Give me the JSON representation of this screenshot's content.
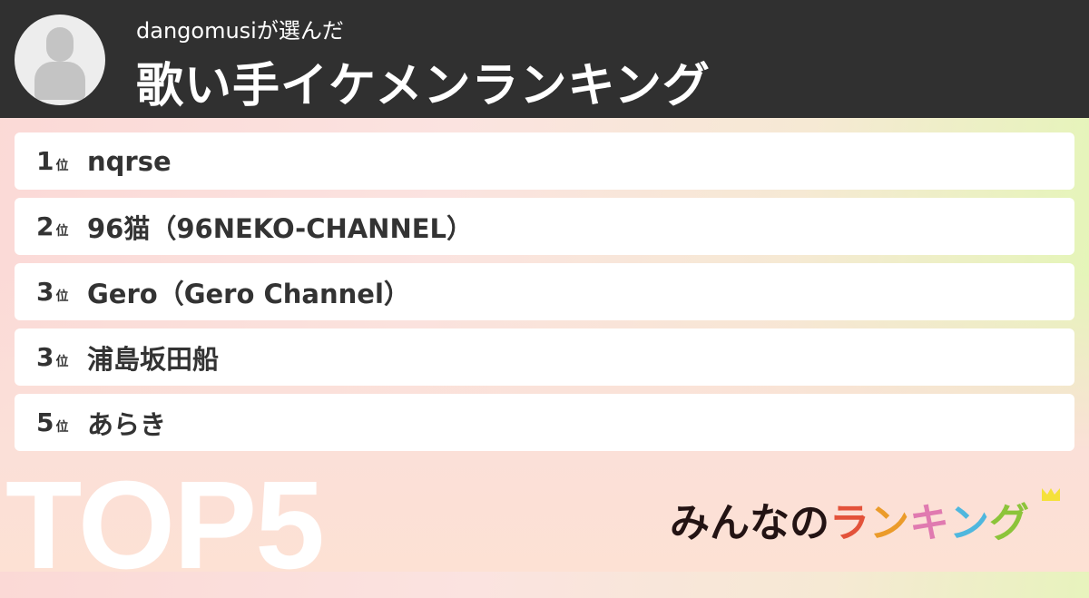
{
  "header": {
    "subtitle": "dangomusiが選んだ",
    "title": "歌い手イケメンランキング"
  },
  "rank_suffix": "位",
  "items": [
    {
      "rank": "1",
      "name": "nqrse"
    },
    {
      "rank": "2",
      "name": "96猫（96NEKO-CHANNEL）"
    },
    {
      "rank": "3",
      "name": "Gero（Gero Channel）"
    },
    {
      "rank": "3",
      "name": "浦島坂田船"
    },
    {
      "rank": "5",
      "name": "あらき"
    }
  ],
  "badge": "TOP5",
  "logo": {
    "text1": "みんなの",
    "chars": [
      "ラ",
      "ン",
      "キ",
      "ン",
      "グ"
    ],
    "colors": [
      "#e3523a",
      "#eb9b2a",
      "#e07ab0",
      "#4fb7de",
      "#8cc43a"
    ],
    "dark": "#231313"
  }
}
